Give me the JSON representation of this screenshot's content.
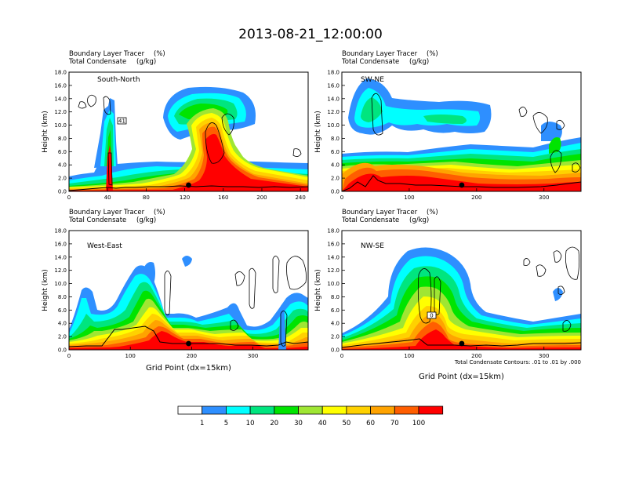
{
  "title": "2013-08-21_12:00:00",
  "colors": {
    "bins": [
      "#ffffff",
      "#2e8fff",
      "#00ffff",
      "#00e57f",
      "#00e400",
      "#9fe633",
      "#ffff00",
      "#ffd100",
      "#ffa300",
      "#ff5e00",
      "#ff0000"
    ],
    "contour": "#000000",
    "terrain": "#000000"
  },
  "chart_data": [
    {
      "type": "heatmap",
      "panel": "south-north",
      "label": "South-North",
      "left_title_1": "Boundary Layer Tracer",
      "left_title_1_unit": "(%)",
      "left_title_2": "Total Condensate",
      "left_title_2_unit": "(g/kg)",
      "ylabel": "Height (km)",
      "xlabel": "",
      "xlim": [
        0,
        248
      ],
      "ylim": [
        0,
        18
      ],
      "xticks": [
        0,
        40,
        80,
        120,
        160,
        200,
        240
      ],
      "yticks": [
        "0.0",
        "2.0",
        "4.0",
        "6.0",
        "8.0",
        "10.0",
        "12.0",
        "14.0",
        "16.0",
        "18.0"
      ],
      "marker_x": 124,
      "box_label": "41"
    },
    {
      "type": "heatmap",
      "panel": "sw-ne",
      "label": "SW-NE",
      "left_title_1": "Boundary Layer Tracer",
      "left_title_1_unit": "(%)",
      "left_title_2": "Total Condensate",
      "left_title_2_unit": "(g/kg)",
      "ylabel": "Height (km)",
      "xlabel": "",
      "xlim": [
        0,
        355
      ],
      "ylim": [
        0,
        18
      ],
      "xticks": [
        0,
        100,
        200,
        300
      ],
      "yticks": [
        "0.0",
        "2.0",
        "4.0",
        "6.0",
        "8.0",
        "10.0",
        "12.0",
        "14.0",
        "16.0",
        "18.0"
      ],
      "marker_x": 178
    },
    {
      "type": "heatmap",
      "panel": "west-east",
      "label": "West-East",
      "left_title_1": "Boundary Layer Tracer",
      "left_title_1_unit": "(%)",
      "left_title_2": "Total Condensate",
      "left_title_2_unit": "(g/kg)",
      "ylabel": "Height (km)",
      "xlabel": "Grid Point (dx=15km)",
      "xlim": [
        0,
        390
      ],
      "ylim": [
        0,
        18
      ],
      "xticks": [
        0,
        100,
        200,
        300
      ],
      "yticks": [
        "0.0",
        "2.0",
        "4.0",
        "6.0",
        "8.0",
        "10.0",
        "12.0",
        "14.0",
        "16.0",
        "18.0"
      ],
      "marker_x": 195
    },
    {
      "type": "heatmap",
      "panel": "nw-se",
      "label": "NW-SE",
      "left_title_1": "Boundary Layer Tracer",
      "left_title_1_unit": "(%)",
      "left_title_2": "Total Condensate",
      "left_title_2_unit": "(g/kg)",
      "ylabel": "Height (km)",
      "xlabel": "Grid Point (dx=15km)",
      "xlim": [
        0,
        355
      ],
      "ylim": [
        0,
        18
      ],
      "xticks": [
        0,
        100,
        200,
        300
      ],
      "yticks": [
        "0.0",
        "2.0",
        "4.0",
        "6.0",
        "8.0",
        "10.0",
        "12.0",
        "14.0",
        "16.0",
        "18.0"
      ],
      "marker_x": 178,
      "box_label": "0",
      "footnote": "Total Condensate Contours: .01 to .01 by .000"
    }
  ],
  "colorbar": {
    "labels": [
      "1",
      "5",
      "10",
      "20",
      "30",
      "40",
      "50",
      "60",
      "70",
      "100"
    ]
  }
}
